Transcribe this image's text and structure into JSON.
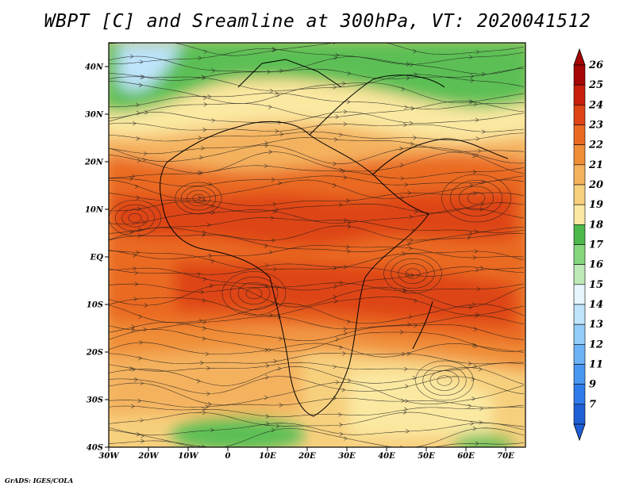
{
  "title": "WBPT [C] and Sreamline at 300hPa, VT: 2020041512",
  "credit": "GrADS: IGES/COLA",
  "map": {
    "lat_labels": [
      "40N",
      "30N",
      "20N",
      "10N",
      "EQ",
      "10S",
      "20S",
      "30S",
      "40S"
    ],
    "lon_labels": [
      "30W",
      "20W",
      "10W",
      "0",
      "10E",
      "20E",
      "30E",
      "40E",
      "50E",
      "60E",
      "70E"
    ],
    "lon_range": [
      -30,
      75
    ],
    "lat_range": [
      -40,
      45
    ]
  },
  "colorbar": {
    "labels": [
      "7",
      "9",
      "11",
      "12",
      "13",
      "14",
      "15",
      "16",
      "17",
      "18",
      "19",
      "20",
      "21",
      "22",
      "23",
      "24",
      "25",
      "26"
    ],
    "colors": [
      "#1f5fd6",
      "#2f7bea",
      "#4a97f2",
      "#6cb2f6",
      "#93ccf8",
      "#bfe4fb",
      "#e6f6fb",
      "#bdeab6",
      "#86d67e",
      "#4cb94a",
      "#fbe9a2",
      "#f7d07e",
      "#f4b25e",
      "#f08e38",
      "#ea6a22",
      "#de4416",
      "#c81f0c",
      "#a50606"
    ]
  },
  "legend_color_map": {
    "green_high": "#4cb94a",
    "pale_yellow": "#fbe9a2",
    "orange": "#f08e38",
    "red_orange": "#ea6a22"
  }
}
